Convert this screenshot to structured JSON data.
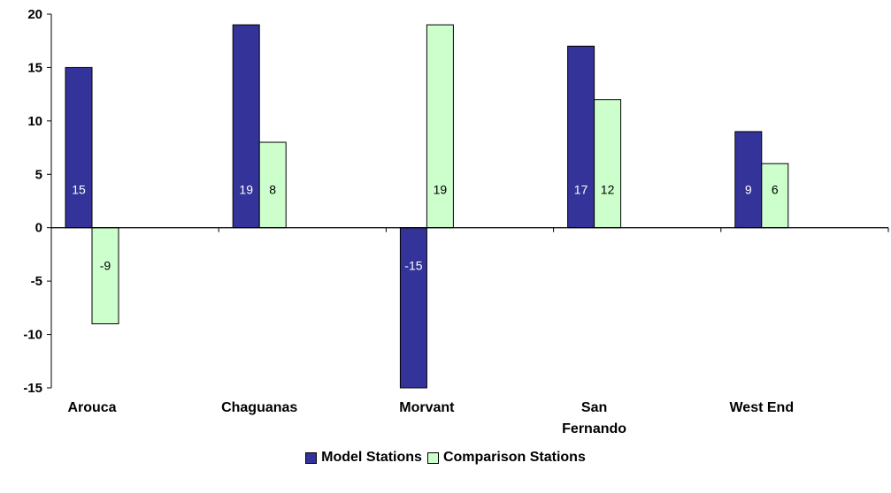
{
  "chart_data": {
    "type": "bar",
    "categories": [
      [
        "Arouca"
      ],
      [
        "Chaguanas"
      ],
      [
        "Morvant"
      ],
      [
        "San",
        "Fernando"
      ],
      [
        "West End"
      ]
    ],
    "series": [
      {
        "name": "Model Stations",
        "values": [
          15,
          19,
          -15,
          17,
          9
        ],
        "data_labels": [
          "15",
          "19",
          "-15",
          "17",
          "9"
        ],
        "color": "#333399",
        "label_color": "#ffffff"
      },
      {
        "name": "Comparison Stations",
        "values": [
          -9,
          8,
          19,
          12,
          6
        ],
        "data_labels": [
          "-9",
          "8",
          "19",
          "12",
          "6"
        ],
        "color": "#ccffcc",
        "label_color": "#000000"
      }
    ],
    "y_ticks": [
      "20",
      "15",
      "10",
      "5",
      "0",
      "-5",
      "-10",
      "-15"
    ],
    "ylim": [
      -15,
      20
    ],
    "grid": false,
    "legend_position": "bottom-center"
  }
}
